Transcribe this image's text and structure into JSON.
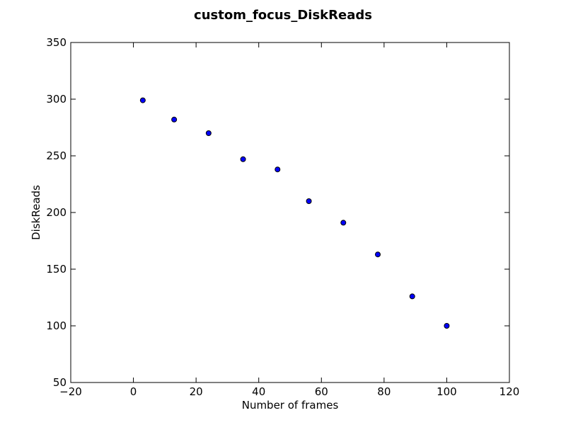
{
  "chart_data": {
    "type": "scatter",
    "title": "custom_focus_DiskReads",
    "xlabel": "Number of frames",
    "ylabel": "DiskReads",
    "xlim": [
      -20,
      120
    ],
    "ylim": [
      50,
      350
    ],
    "x_ticks": [
      -20,
      0,
      20,
      40,
      60,
      80,
      100,
      120
    ],
    "y_ticks": [
      50,
      100,
      150,
      200,
      250,
      300,
      350
    ],
    "x_tick_labels": [
      "−20",
      "0",
      "20",
      "40",
      "60",
      "80",
      "100",
      "120"
    ],
    "y_tick_labels": [
      "50",
      "100",
      "150",
      "200",
      "250",
      "300",
      "350"
    ],
    "grid": false,
    "marker_color": "#0000ff",
    "series": [
      {
        "x": [
          3,
          13,
          24,
          35,
          46,
          56,
          67,
          78,
          89,
          100
        ],
        "y": [
          299,
          282,
          270,
          247,
          238,
          210,
          191,
          163,
          126,
          100
        ]
      }
    ]
  }
}
